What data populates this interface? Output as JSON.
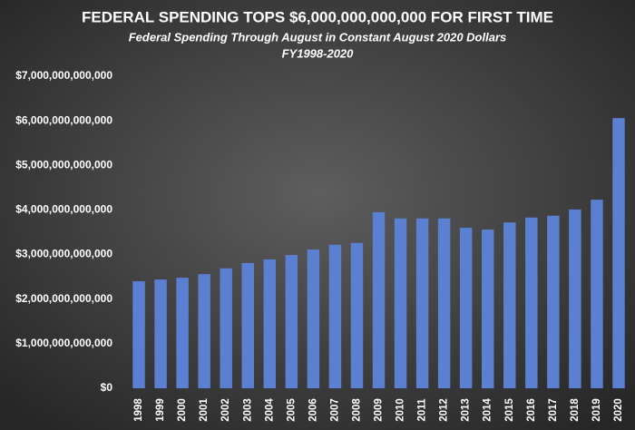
{
  "chart_data": {
    "type": "bar",
    "title": "FEDERAL SPENDING TOPS $6,000,000,000,000 FOR FIRST TIME",
    "subtitle": "Federal Spending Through August in Constant August 2020 Dollars",
    "subtitle2": "FY1998-2020",
    "categories": [
      "1998",
      "1999",
      "2000",
      "2001",
      "2002",
      "2003",
      "2004",
      "2005",
      "2006",
      "2007",
      "2008",
      "2009",
      "2010",
      "2011",
      "2012",
      "2013",
      "2014",
      "2015",
      "2016",
      "2017",
      "2018",
      "2019",
      "2020"
    ],
    "values": [
      2400000000000,
      2440000000000,
      2480000000000,
      2560000000000,
      2690000000000,
      2810000000000,
      2890000000000,
      2990000000000,
      3110000000000,
      3220000000000,
      3260000000000,
      3950000000000,
      3810000000000,
      3810000000000,
      3810000000000,
      3600000000000,
      3560000000000,
      3720000000000,
      3830000000000,
      3870000000000,
      4010000000000,
      4230000000000,
      6060000000000
    ],
    "color": "#5b80d2",
    "ylim": [
      0,
      7000000000000
    ],
    "yticks": [
      {
        "value": 0,
        "label": "$0"
      },
      {
        "value": 1000000000000,
        "label": "$1,000,000,000,000"
      },
      {
        "value": 2000000000000,
        "label": "$2,000,000,000,000"
      },
      {
        "value": 3000000000000,
        "label": "$3,000,000,000,000"
      },
      {
        "value": 4000000000000,
        "label": "$4,000,000,000,000"
      },
      {
        "value": 5000000000000,
        "label": "$5,000,000,000,000"
      },
      {
        "value": 6000000000000,
        "label": "$6,000,000,000,000"
      },
      {
        "value": 7000000000000,
        "label": "$7,000,000,000,000"
      }
    ],
    "grid": false
  }
}
